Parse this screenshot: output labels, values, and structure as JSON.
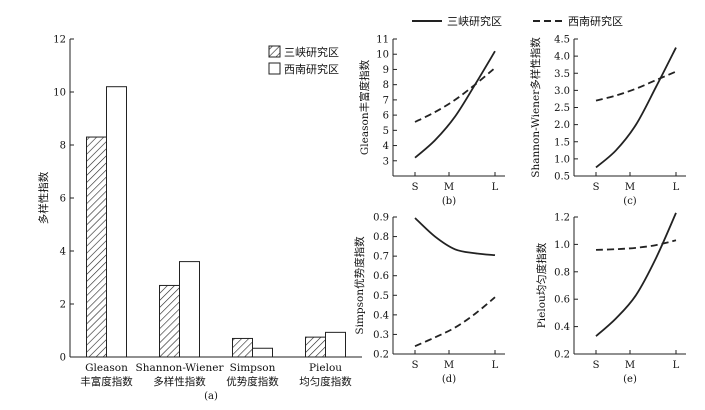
{
  "legend_a": {
    "series1": "三峡研究区",
    "series2": "西南研究区"
  },
  "legend_top": {
    "series1": "三峡研究区",
    "series2": "西南研究区"
  },
  "captions": {
    "a": "(a)",
    "b": "(b)",
    "c": "(c)",
    "d": "(d)",
    "e": "(e)"
  },
  "colors": {
    "series1_fill": "hatch-diagonal",
    "series2_fill": "#ffffff",
    "stroke": "#222222"
  },
  "chart_data": [
    {
      "id": "a",
      "type": "bar",
      "ylabel": "多样性指数",
      "xlabel": "",
      "ylim": [
        0,
        12
      ],
      "yticks": [
        0,
        2,
        4,
        6,
        8,
        10,
        12
      ],
      "categories": [
        "Gleason 丰富度指数",
        "Shannon-Wiener 多样性指数",
        "Simpson 优势度指数",
        "Pielou 均匀度指数"
      ],
      "category_lines": [
        [
          "Gleason",
          "丰富度指数"
        ],
        [
          "Shannon-Wiener",
          "多样性指数"
        ],
        [
          "Simpson",
          "优势度指数"
        ],
        [
          "Pielou",
          "均匀度指数"
        ]
      ],
      "series": [
        {
          "name": "三峡研究区",
          "values": [
            8.3,
            2.7,
            0.7,
            0.75
          ]
        },
        {
          "name": "西南研究区",
          "values": [
            10.2,
            3.6,
            0.33,
            0.93
          ]
        }
      ],
      "legend": "top-right",
      "grid": false
    },
    {
      "id": "b",
      "type": "line",
      "ylabel": "Gleason丰富度指数",
      "x": [
        "S",
        "M",
        "L"
      ],
      "ylim": [
        2,
        11
      ],
      "yticks": [
        3,
        4,
        5,
        6,
        7,
        8,
        9,
        10,
        11
      ],
      "series": [
        {
          "name": "三峡研究区",
          "style": "solid",
          "points": [
            [
              0,
              3.2
            ],
            [
              0.5,
              4.35
            ],
            [
              1.0,
              5.9
            ],
            [
              1.5,
              8.0
            ],
            [
              2.0,
              10.2
            ]
          ]
        },
        {
          "name": "西南研究区",
          "style": "dashed",
          "points": [
            [
              0,
              5.55
            ],
            [
              0.5,
              6.2
            ],
            [
              1.0,
              7.0
            ],
            [
              1.5,
              8.0
            ],
            [
              2.0,
              9.1
            ]
          ]
        }
      ],
      "grid": false
    },
    {
      "id": "c",
      "type": "line",
      "ylabel": "Shannon-Wiener多样性指数",
      "x": [
        "S",
        "M",
        "L"
      ],
      "ylim": [
        0.5,
        4.5
      ],
      "yticks": [
        0.5,
        1.0,
        1.5,
        2.0,
        2.5,
        3.0,
        3.5,
        4.0,
        4.5
      ],
      "series": [
        {
          "name": "三峡研究区",
          "style": "solid",
          "points": [
            [
              0,
              0.75
            ],
            [
              0.5,
              1.25
            ],
            [
              1.0,
              2.0
            ],
            [
              1.5,
              3.1
            ],
            [
              2.0,
              4.25
            ]
          ]
        },
        {
          "name": "西南研究区",
          "style": "dashed",
          "points": [
            [
              0,
              2.7
            ],
            [
              0.5,
              2.85
            ],
            [
              1.0,
              3.05
            ],
            [
              1.5,
              3.3
            ],
            [
              2.0,
              3.55
            ]
          ]
        }
      ],
      "grid": false
    },
    {
      "id": "d",
      "type": "line",
      "ylabel": "Simpson优势度指数",
      "x": [
        "S",
        "M",
        "L"
      ],
      "ylim": [
        0.2,
        0.9
      ],
      "yticks": [
        0.2,
        0.3,
        0.4,
        0.5,
        0.6,
        0.7,
        0.8,
        0.9
      ],
      "series": [
        {
          "name": "三峡研究区",
          "style": "solid",
          "points": [
            [
              0,
              0.895
            ],
            [
              0.5,
              0.8
            ],
            [
              1.0,
              0.735
            ],
            [
              1.5,
              0.715
            ],
            [
              2.0,
              0.705
            ]
          ]
        },
        {
          "name": "西南研究区",
          "style": "dashed",
          "points": [
            [
              0,
              0.24
            ],
            [
              0.5,
              0.285
            ],
            [
              1.0,
              0.335
            ],
            [
              1.5,
              0.405
            ],
            [
              2.0,
              0.49
            ]
          ]
        }
      ],
      "grid": false
    },
    {
      "id": "e",
      "type": "line",
      "ylabel": "Pielou均匀度指数",
      "x": [
        "S",
        "M",
        "L"
      ],
      "ylim": [
        0.2,
        1.2
      ],
      "yticks": [
        0.2,
        0.4,
        0.6,
        0.8,
        1.0,
        1.2
      ],
      "series": [
        {
          "name": "三峡研究区",
          "style": "solid",
          "points": [
            [
              0,
              0.33
            ],
            [
              0.5,
              0.46
            ],
            [
              1.0,
              0.63
            ],
            [
              1.5,
              0.9
            ],
            [
              2.0,
              1.23
            ]
          ]
        },
        {
          "name": "西南研究区",
          "style": "dashed",
          "points": [
            [
              0,
              0.96
            ],
            [
              0.5,
              0.965
            ],
            [
              1.0,
              0.975
            ],
            [
              1.5,
              0.995
            ],
            [
              2.0,
              1.03
            ]
          ]
        }
      ],
      "grid": false
    }
  ]
}
